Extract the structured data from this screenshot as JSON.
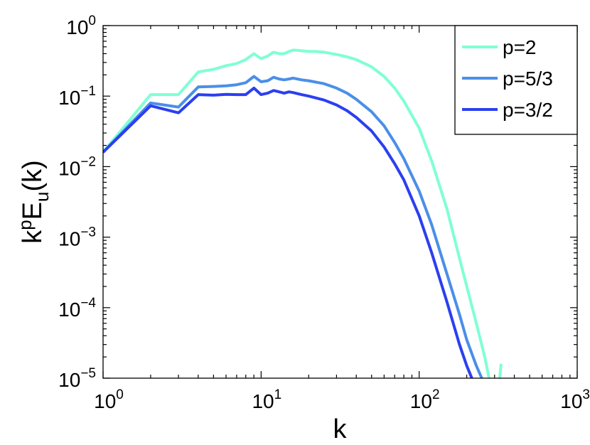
{
  "chart_data": {
    "type": "line",
    "xscale": "log",
    "yscale": "log",
    "xlim": [
      1,
      1000
    ],
    "ylim": [
      1e-05,
      1
    ],
    "xlabel": "k",
    "ylabel": {
      "base": "k",
      "sup": "p",
      "mid": "E",
      "sub": "u",
      "tail": "(k)"
    },
    "grid": false,
    "legend_position": "top-right",
    "x_ticks": [
      {
        "value": 1,
        "base": "10",
        "exp": "0"
      },
      {
        "value": 10,
        "base": "10",
        "exp": "1"
      },
      {
        "value": 100,
        "base": "10",
        "exp": "2"
      },
      {
        "value": 1000,
        "base": "10",
        "exp": "3"
      }
    ],
    "y_ticks": [
      {
        "value": 1e-05,
        "base": "10",
        "exp": "−5"
      },
      {
        "value": 0.0001,
        "base": "10",
        "exp": "−4"
      },
      {
        "value": 0.001,
        "base": "10",
        "exp": "−3"
      },
      {
        "value": 0.01,
        "base": "10",
        "exp": "−2"
      },
      {
        "value": 0.1,
        "base": "10",
        "exp": "−1"
      },
      {
        "value": 1,
        "base": "10",
        "exp": "0"
      }
    ],
    "series": [
      {
        "name": "p=2",
        "color": "#7fffd4",
        "points": [
          [
            1,
            0.016
          ],
          [
            2,
            0.105
          ],
          [
            3,
            0.105
          ],
          [
            4,
            0.22
          ],
          [
            5,
            0.24
          ],
          [
            6,
            0.27
          ],
          [
            7,
            0.29
          ],
          [
            8,
            0.33
          ],
          [
            9,
            0.4
          ],
          [
            10,
            0.34
          ],
          [
            11,
            0.37
          ],
          [
            12,
            0.42
          ],
          [
            13,
            0.4
          ],
          [
            14,
            0.4
          ],
          [
            15,
            0.43
          ],
          [
            16,
            0.45
          ],
          [
            18,
            0.44
          ],
          [
            20,
            0.43
          ],
          [
            22,
            0.43
          ],
          [
            25,
            0.42
          ],
          [
            30,
            0.39
          ],
          [
            35,
            0.36
          ],
          [
            40,
            0.33
          ],
          [
            50,
            0.26
          ],
          [
            60,
            0.19
          ],
          [
            70,
            0.13
          ],
          [
            80,
            0.085
          ],
          [
            100,
            0.035
          ],
          [
            120,
            0.012
          ],
          [
            150,
            0.0025
          ],
          [
            180,
            0.0005
          ],
          [
            200,
            0.0002
          ],
          [
            230,
            6e-05
          ],
          [
            260,
            2e-05
          ],
          [
            290,
            6e-06
          ],
          [
            310,
            3e-06
          ],
          [
            320,
            8e-06
          ],
          [
            330,
            1.6e-05
          ]
        ]
      },
      {
        "name": "p=5/3",
        "color": "#4a8fe8",
        "points": [
          [
            1,
            0.016
          ],
          [
            2,
            0.08
          ],
          [
            3,
            0.07
          ],
          [
            4,
            0.135
          ],
          [
            5,
            0.137
          ],
          [
            6,
            0.14
          ],
          [
            7,
            0.145
          ],
          [
            8,
            0.155
          ],
          [
            9,
            0.19
          ],
          [
            10,
            0.16
          ],
          [
            11,
            0.165
          ],
          [
            12,
            0.185
          ],
          [
            13,
            0.175
          ],
          [
            14,
            0.17
          ],
          [
            15,
            0.175
          ],
          [
            16,
            0.18
          ],
          [
            18,
            0.17
          ],
          [
            20,
            0.165
          ],
          [
            25,
            0.15
          ],
          [
            30,
            0.13
          ],
          [
            35,
            0.11
          ],
          [
            40,
            0.09
          ],
          [
            50,
            0.06
          ],
          [
            60,
            0.038
          ],
          [
            70,
            0.022
          ],
          [
            80,
            0.013
          ],
          [
            100,
            0.0045
          ],
          [
            120,
            0.0015
          ],
          [
            150,
            0.0003
          ],
          [
            180,
            8e-05
          ],
          [
            200,
            3.5e-05
          ],
          [
            230,
            1.5e-05
          ],
          [
            260,
            8e-06
          ]
        ]
      },
      {
        "name": "p=3/2",
        "color": "#2b3ff0",
        "points": [
          [
            1,
            0.016
          ],
          [
            2,
            0.073
          ],
          [
            3,
            0.058
          ],
          [
            4,
            0.105
          ],
          [
            5,
            0.103
          ],
          [
            6,
            0.106
          ],
          [
            7,
            0.105
          ],
          [
            8,
            0.105
          ],
          [
            9,
            0.13
          ],
          [
            10,
            0.105
          ],
          [
            11,
            0.11
          ],
          [
            12,
            0.12
          ],
          [
            13,
            0.115
          ],
          [
            14,
            0.11
          ],
          [
            15,
            0.115
          ],
          [
            16,
            0.112
          ],
          [
            18,
            0.105
          ],
          [
            20,
            0.1
          ],
          [
            25,
            0.088
          ],
          [
            30,
            0.075
          ],
          [
            35,
            0.062
          ],
          [
            40,
            0.05
          ],
          [
            50,
            0.032
          ],
          [
            60,
            0.019
          ],
          [
            70,
            0.011
          ],
          [
            80,
            0.0065
          ],
          [
            100,
            0.002
          ],
          [
            120,
            0.0006
          ],
          [
            150,
            0.00012
          ],
          [
            180,
            3e-05
          ],
          [
            200,
            1.5e-05
          ],
          [
            230,
            7e-06
          ]
        ]
      }
    ]
  }
}
